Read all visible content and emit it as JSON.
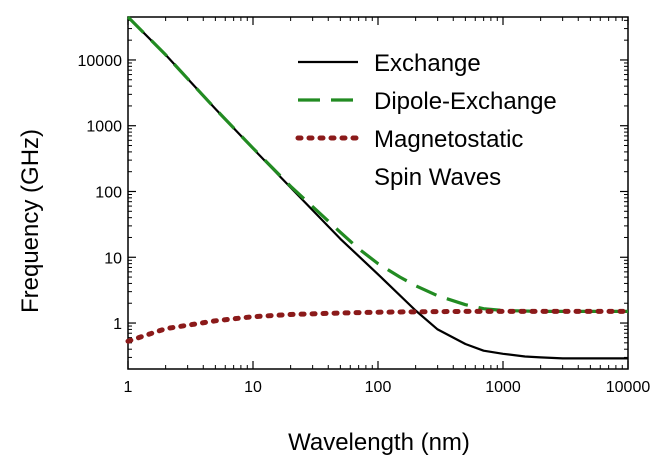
{
  "chart_data": {
    "type": "line",
    "xlabel": "Wavelength (nm)",
    "ylabel": "Frequency (GHz)",
    "xscale": "log",
    "yscale": "log",
    "xlim": [
      1,
      10000
    ],
    "ylim": [
      0.2,
      45000
    ],
    "xticks": [
      1,
      10,
      100,
      1000,
      10000
    ],
    "xtick_labels": [
      "1",
      "10",
      "100",
      "1000",
      "10000"
    ],
    "yticks": [
      1,
      10,
      100,
      1000,
      10000
    ],
    "ytick_labels": [
      "1",
      "10",
      "100",
      "1000",
      "10000"
    ],
    "grid": false,
    "legend_position": "top-right",
    "series": [
      {
        "name": "Exchange",
        "color": "#000000",
        "style": "solid",
        "x": [
          1,
          2,
          5,
          10,
          20,
          50,
          100,
          200,
          300,
          500,
          700,
          1000,
          1500,
          2000,
          3000,
          5000,
          10000
        ],
        "y": [
          45000,
          12000,
          1800,
          450,
          115,
          19,
          5.5,
          1.55,
          0.8,
          0.48,
          0.38,
          0.34,
          0.31,
          0.3,
          0.29,
          0.29,
          0.29
        ]
      },
      {
        "name": "Dipole-Exchange",
        "color": "#228b22",
        "style": "dashed",
        "x": [
          1,
          2,
          5,
          10,
          20,
          50,
          70,
          100,
          150,
          200,
          300,
          500,
          700,
          1000,
          2000,
          5000,
          10000
        ],
        "y": [
          45000,
          12000,
          1800,
          455,
          120,
          24,
          13.5,
          8,
          5,
          3.7,
          2.6,
          1.9,
          1.65,
          1.55,
          1.5,
          1.5,
          1.5
        ]
      },
      {
        "name": "Magnetostatic Spin Waves",
        "legend_lines": [
          "Magnetostatic",
          "Spin Waves"
        ],
        "color": "#8b1a1a",
        "style": "dotted",
        "x": [
          1,
          2,
          5,
          10,
          20,
          50,
          100,
          200,
          500,
          1000,
          10000
        ],
        "y": [
          0.53,
          0.82,
          1.08,
          1.25,
          1.35,
          1.42,
          1.46,
          1.48,
          1.5,
          1.5,
          1.5
        ]
      }
    ]
  }
}
